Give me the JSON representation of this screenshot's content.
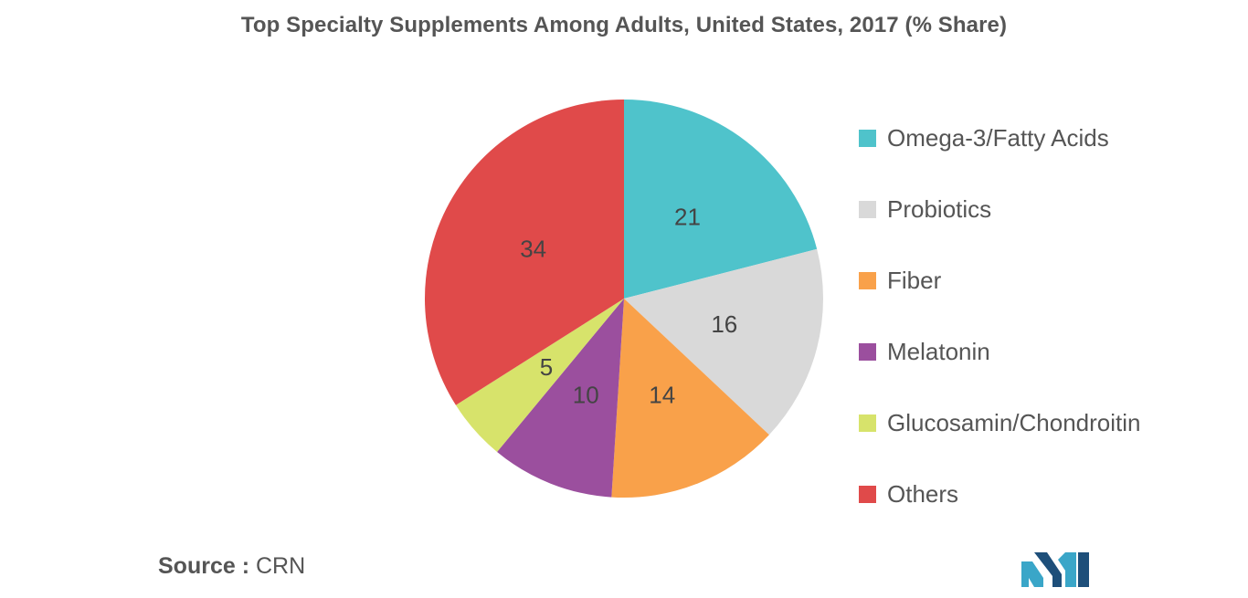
{
  "chart_data": {
    "type": "pie",
    "title": "Top Specialty Supplements Among Adults, United States, 2017 (% Share)",
    "categories": [
      "Omega-3/Fatty Acids",
      "Probiotics",
      "Fiber",
      "Melatonin",
      "Glucosamin/Chondroitin",
      "Others"
    ],
    "values": [
      21,
      16,
      14,
      10,
      5,
      34
    ],
    "data_labels": [
      "21",
      "16",
      "14",
      "10",
      "5",
      "34"
    ],
    "colors": [
      "#4fc3cb",
      "#d9d9d9",
      "#f9a14a",
      "#9b4f9e",
      "#d7e36b",
      "#e04a4a"
    ],
    "start_angle": "12 o'clock",
    "direction": "clockwise",
    "legend_position": "right"
  },
  "source": {
    "label": "Source :",
    "value": "CRN"
  },
  "logo": {
    "icon": "mordor-intelligence-logo-icon",
    "colors": [
      "#3aa6c8",
      "#1e4f7a"
    ]
  }
}
